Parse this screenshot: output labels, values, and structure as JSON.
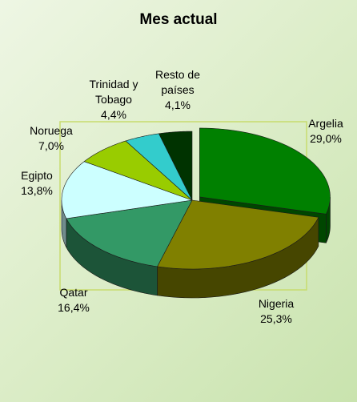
{
  "chart_data": {
    "type": "pie",
    "title": "Mes actual",
    "categories": [
      "Argelia",
      "Nigeria",
      "Qatar",
      "Egipto",
      "Noruega",
      "Trinidad y Tobago",
      "Resto de países"
    ],
    "values": [
      29.0,
      25.3,
      16.4,
      13.8,
      7.0,
      4.4,
      4.1
    ],
    "value_labels": [
      "29,0%",
      "25,3%",
      "16,4%",
      "13,8%",
      "7,0%",
      "4,4%",
      "4,1%"
    ],
    "colors": [
      "#008000",
      "#808000",
      "#339966",
      "#ccffff",
      "#99cc00",
      "#33cccc",
      "#003300"
    ]
  }
}
